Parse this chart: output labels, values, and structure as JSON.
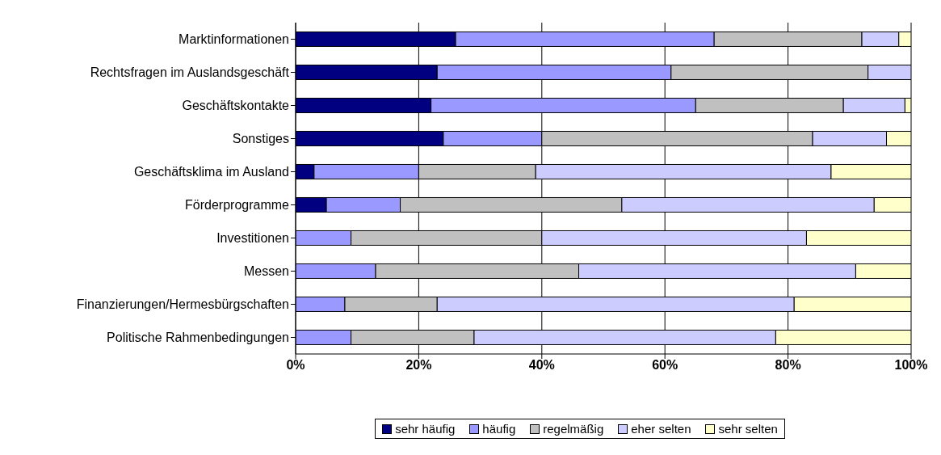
{
  "chart_data": {
    "type": "bar",
    "orientation": "horizontal",
    "stacked": true,
    "categories": [
      "Marktinformationen",
      "Rechtsfragen im Auslandsgeschäft",
      "Geschäftskontakte",
      "Sonstiges",
      "Geschäftsklima im Ausland",
      "Förderprogramme",
      "Investitionen",
      "Messen",
      "Finanzierungen/Hermesbürgschaften",
      "Politische Rahmenbedingungen"
    ],
    "series": [
      {
        "name": "sehr häufig",
        "color": "#000080",
        "values": [
          26,
          23,
          22,
          24,
          3,
          5,
          0,
          0,
          0,
          0
        ]
      },
      {
        "name": "häufig",
        "color": "#9999ff",
        "values": [
          42,
          38,
          43,
          16,
          17,
          12,
          9,
          13,
          8,
          9
        ]
      },
      {
        "name": "regelmäßig",
        "color": "#c0c0c0",
        "values": [
          24,
          32,
          24,
          44,
          19,
          36,
          31,
          33,
          15,
          20
        ]
      },
      {
        "name": "eher selten",
        "color": "#ccccff",
        "values": [
          6,
          7,
          10,
          12,
          48,
          41,
          43,
          45,
          58,
          49
        ]
      },
      {
        "name": "sehr selten",
        "color": "#ffffcc",
        "values": [
          2,
          0,
          1,
          4,
          13,
          6,
          17,
          9,
          19,
          22
        ]
      }
    ],
    "xlim": [
      0,
      100
    ],
    "xticks": [
      {
        "value": 0,
        "label": "0%"
      },
      {
        "value": 20,
        "label": "20%"
      },
      {
        "value": 40,
        "label": "40%"
      },
      {
        "value": 60,
        "label": "60%"
      },
      {
        "value": 80,
        "label": "80%"
      },
      {
        "value": 100,
        "label": "100%"
      }
    ],
    "grid": "x",
    "legend": "bottom"
  }
}
